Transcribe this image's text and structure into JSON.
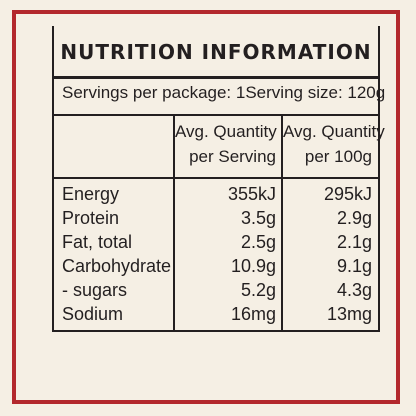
{
  "label": {
    "title": "NUTRITION INFORMATION",
    "servings_per_package": "Servings per package: 1",
    "serving_size": "Serving size: 120g",
    "columns": {
      "per_serving_line1": "Avg. Quantity",
      "per_serving_line2": "per Serving",
      "per_100g_line1": "Avg. Quantity",
      "per_100g_line2": "per 100g"
    },
    "rows": [
      {
        "name": "Energy",
        "per_serving": "355kJ",
        "per_100g": "295kJ"
      },
      {
        "name": "Protein",
        "per_serving": "3.5g",
        "per_100g": "2.9g"
      },
      {
        "name": "Fat, total",
        "per_serving": "2.5g",
        "per_100g": "2.1g"
      },
      {
        "name": "Carbohydrate",
        "per_serving": "10.9g",
        "per_100g": "9.1g"
      },
      {
        "name": "- sugars",
        "per_serving": "5.2g",
        "per_100g": "4.3g"
      },
      {
        "name": "Sodium",
        "per_serving": "16mg",
        "per_100g": "13mg"
      }
    ]
  },
  "colors": {
    "background": "#f5efe4",
    "border": "#b3282d",
    "text": "#231f20"
  }
}
